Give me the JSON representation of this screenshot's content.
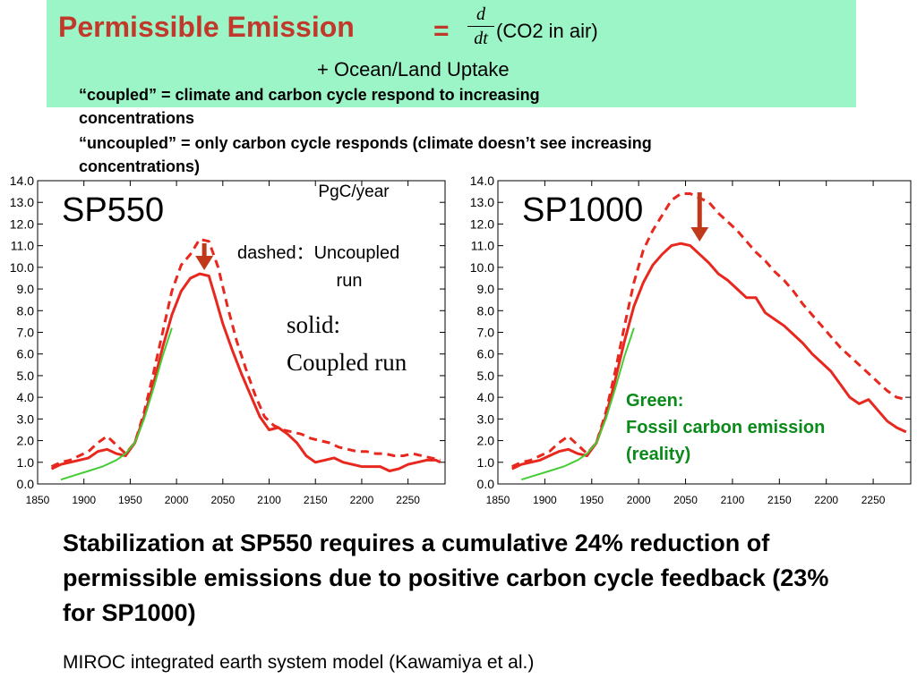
{
  "header": {
    "title": "Permissible Emission",
    "equals": "=",
    "d_numerator": "d",
    "d_denominator": "dt",
    "co2_term": "(CO2 in air)",
    "ocean_term": "+ Ocean/Land Uptake"
  },
  "definitions": {
    "coupled_line1": "“coupled” = climate and carbon cycle respond to increasing",
    "coupled_line2": "concentrations",
    "uncoupled_line1": "“uncoupled” = only carbon cycle responds (climate doesn’t see increasing",
    "uncoupled_line2": "concentrations)"
  },
  "colors": {
    "title_red": "#c0392b",
    "title_box": "#9cf5c6",
    "series_red": "#e8281e",
    "fossil_green": "#44cc33",
    "arrow": "#c0391b",
    "annotation_green": "#0a8a1a"
  },
  "chart_data": [
    {
      "type": "line",
      "panel_label": "SP550",
      "unit_label": "PgC/year",
      "annotations": {
        "dashed_label": "dashed：Uncoupled",
        "dashed_label_2": "run",
        "solid_label": "solid:",
        "solid_label_2": "Coupled run"
      },
      "xlim": [
        1850,
        2290
      ],
      "ylim": [
        0,
        14
      ],
      "xticks": [
        "1850",
        "1900",
        "1950",
        "2000",
        "2050",
        "2100",
        "2150",
        "2200",
        "2250"
      ],
      "yticks": [
        "0.0",
        "1.0",
        "2.0",
        "3.0",
        "4.0",
        "5.0",
        "6.0",
        "7.0",
        "8.0",
        "9.0",
        "10.0",
        "11.0",
        "12.0",
        "13.0",
        "14.0"
      ],
      "arrow_year": 2030,
      "series": [
        {
          "style": "solid",
          "x": [
            1865,
            1875,
            1885,
            1895,
            1905,
            1915,
            1925,
            1935,
            1945,
            1955,
            1965,
            1975,
            1985,
            1995,
            2005,
            2015,
            2025,
            2035,
            2042,
            2050,
            2060,
            2070,
            2080,
            2090,
            2100,
            2110,
            2120,
            2130,
            2140,
            2150,
            2160,
            2170,
            2180,
            2190,
            2200,
            2210,
            2220,
            2230,
            2240,
            2250,
            2260,
            2270,
            2280,
            2285
          ],
          "y": [
            0.7,
            0.9,
            1.0,
            1.1,
            1.2,
            1.5,
            1.6,
            1.4,
            1.3,
            1.9,
            3.1,
            4.6,
            6.3,
            7.8,
            8.9,
            9.5,
            9.7,
            9.6,
            8.6,
            7.4,
            6.2,
            5.1,
            4.1,
            3.1,
            2.5,
            2.6,
            2.3,
            1.9,
            1.3,
            1.0,
            1.1,
            1.2,
            1.0,
            0.9,
            0.8,
            0.8,
            0.8,
            0.6,
            0.7,
            0.9,
            1.0,
            1.1,
            1.1,
            1.0
          ]
        },
        {
          "style": "dashed",
          "x": [
            1865,
            1875,
            1885,
            1895,
            1905,
            1915,
            1925,
            1935,
            1945,
            1955,
            1965,
            1975,
            1985,
            1995,
            2005,
            2015,
            2025,
            2035,
            2045,
            2055,
            2065,
            2075,
            2085,
            2095,
            2105,
            2115,
            2125,
            2135,
            2145,
            2155,
            2165,
            2175,
            2185,
            2195,
            2205,
            2215,
            2225,
            2235,
            2245,
            2255,
            2265,
            2275,
            2285
          ],
          "y": [
            0.8,
            1.0,
            1.1,
            1.3,
            1.5,
            1.9,
            2.2,
            1.8,
            1.4,
            1.9,
            3.3,
            5.1,
            7.0,
            8.9,
            10.1,
            10.6,
            11.3,
            11.2,
            10.0,
            8.2,
            6.6,
            5.3,
            4.1,
            3.1,
            2.7,
            2.5,
            2.4,
            2.3,
            2.1,
            2.0,
            1.9,
            1.7,
            1.6,
            1.5,
            1.5,
            1.4,
            1.4,
            1.3,
            1.3,
            1.4,
            1.3,
            1.2,
            1.1
          ]
        },
        {
          "style": "green",
          "x": [
            1875,
            1890,
            1905,
            1920,
            1935,
            1945,
            1955,
            1965,
            1975,
            1985,
            1995
          ],
          "y": [
            0.2,
            0.4,
            0.6,
            0.8,
            1.1,
            1.4,
            1.9,
            3.0,
            4.4,
            5.9,
            7.2
          ]
        }
      ]
    },
    {
      "type": "line",
      "panel_label": "SP1000",
      "annotations": {
        "green_label_1": "Green:",
        "green_label_2": "Fossil carbon emission",
        "green_label_3": "(reality)"
      },
      "xlim": [
        1850,
        2290
      ],
      "ylim": [
        0,
        14
      ],
      "xticks": [
        "1850",
        "1900",
        "1950",
        "2000",
        "2050",
        "2100",
        "2150",
        "2200",
        "2250"
      ],
      "yticks": [
        "0.0",
        "1.0",
        "2.0",
        "3.0",
        "4.0",
        "5.0",
        "6.0",
        "7.0",
        "8.0",
        "9.0",
        "10.0",
        "11.0",
        "12.0",
        "13.0",
        "14.0"
      ],
      "arrow_year": 2065,
      "series": [
        {
          "style": "solid",
          "x": [
            1865,
            1875,
            1885,
            1895,
            1905,
            1915,
            1925,
            1935,
            1945,
            1955,
            1965,
            1975,
            1985,
            1995,
            2005,
            2015,
            2025,
            2035,
            2045,
            2055,
            2065,
            2075,
            2085,
            2095,
            2105,
            2115,
            2125,
            2135,
            2145,
            2155,
            2165,
            2175,
            2185,
            2195,
            2205,
            2215,
            2225,
            2235,
            2245,
            2255,
            2265,
            2275,
            2285
          ],
          "y": [
            0.7,
            0.9,
            1.0,
            1.1,
            1.3,
            1.5,
            1.6,
            1.4,
            1.3,
            1.9,
            3.1,
            4.8,
            6.6,
            8.2,
            9.3,
            10.1,
            10.6,
            11.0,
            11.1,
            11.0,
            10.6,
            10.2,
            9.7,
            9.4,
            9.0,
            8.6,
            8.6,
            7.9,
            7.6,
            7.3,
            6.9,
            6.5,
            6.0,
            5.6,
            5.2,
            4.6,
            4.0,
            3.7,
            3.9,
            3.4,
            2.9,
            2.6,
            2.4
          ]
        },
        {
          "style": "dashed",
          "x": [
            1865,
            1875,
            1885,
            1895,
            1905,
            1915,
            1925,
            1935,
            1945,
            1955,
            1965,
            1975,
            1985,
            1995,
            2005,
            2015,
            2025,
            2035,
            2045,
            2055,
            2065,
            2075,
            2085,
            2095,
            2105,
            2115,
            2125,
            2135,
            2145,
            2155,
            2165,
            2175,
            2185,
            2195,
            2205,
            2215,
            2225,
            2235,
            2245,
            2255,
            2265,
            2275,
            2285
          ],
          "y": [
            0.8,
            1.0,
            1.1,
            1.3,
            1.5,
            1.9,
            2.2,
            1.8,
            1.4,
            1.9,
            3.3,
            5.2,
            7.3,
            9.3,
            10.8,
            11.7,
            12.4,
            13.1,
            13.4,
            13.4,
            13.2,
            13.0,
            12.5,
            12.1,
            11.7,
            11.2,
            10.7,
            10.3,
            9.8,
            9.4,
            8.9,
            8.3,
            7.8,
            7.3,
            6.8,
            6.3,
            5.9,
            5.5,
            5.1,
            4.7,
            4.3,
            4.0,
            3.9
          ]
        },
        {
          "style": "green",
          "x": [
            1875,
            1890,
            1905,
            1920,
            1935,
            1945,
            1955,
            1965,
            1975,
            1985,
            1995
          ],
          "y": [
            0.2,
            0.4,
            0.6,
            0.8,
            1.1,
            1.4,
            1.9,
            3.0,
            4.4,
            5.9,
            7.2
          ]
        }
      ]
    }
  ],
  "conclusion": "Stabilization at SP550 requires a cumulative 24% reduction of permissible emissions due to positive carbon cycle feedback (23% for SP1000)",
  "credit": "MIROC integrated earth system model (Kawamiya et al.)"
}
